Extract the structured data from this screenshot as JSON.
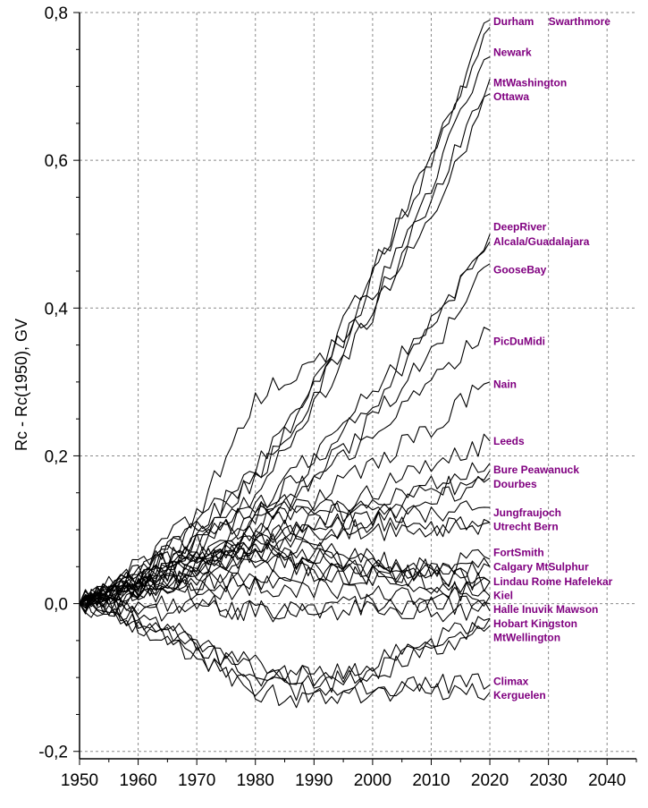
{
  "chart_data": {
    "type": "line",
    "title": "",
    "xlabel": "",
    "ylabel": "Rc - Rc(1950), GV",
    "xlim": [
      1950,
      2045
    ],
    "ylim": [
      -0.21,
      0.8
    ],
    "xticks": [
      1950,
      1960,
      1970,
      1980,
      1990,
      2000,
      2010,
      2020,
      2030,
      2040
    ],
    "yticks": [
      -0.2,
      0.0,
      0.2,
      0.4,
      0.6,
      0.8
    ],
    "ytick_labels": [
      "-0,2",
      "0,0",
      "0,2",
      "0,4",
      "0,6",
      "0,8"
    ],
    "grid": true,
    "label_color": "#800080",
    "line_color": "#000000",
    "series": [
      {
        "name": "Durham",
        "x": [
          1950,
          1960,
          1970,
          1980,
          1990,
          2000,
          2010,
          2020
        ],
        "values": [
          0,
          0.04,
          0.1,
          0.18,
          0.3,
          0.45,
          0.61,
          0.79
        ]
      },
      {
        "name": "Swarthmore",
        "x": [
          1950,
          1960,
          1970,
          1980,
          1990,
          2000,
          2010,
          2020
        ],
        "values": [
          0,
          0.04,
          0.11,
          0.17,
          0.29,
          0.44,
          0.6,
          0.78
        ]
      },
      {
        "name": "Newark",
        "x": [
          1950,
          1960,
          1970,
          1980,
          1990,
          2000,
          2010,
          2020
        ],
        "values": [
          0,
          0.04,
          0.1,
          0.17,
          0.28,
          0.42,
          0.57,
          0.74
        ]
      },
      {
        "name": "MtWashington",
        "x": [
          1950,
          1960,
          1970,
          1980,
          1990,
          2000,
          2010,
          2020
        ],
        "values": [
          0,
          0.05,
          0.12,
          0.28,
          0.32,
          0.4,
          0.55,
          0.71
        ]
      },
      {
        "name": "Ottawa",
        "x": [
          1950,
          1960,
          1970,
          1980,
          1990,
          2000,
          2010,
          2020
        ],
        "values": [
          0,
          0.03,
          0.09,
          0.15,
          0.27,
          0.39,
          0.53,
          0.69
        ]
      },
      {
        "name": "DeepRiver",
        "x": [
          1950,
          1960,
          1970,
          1980,
          1990,
          2000,
          2010,
          2020
        ],
        "values": [
          0,
          0.03,
          0.08,
          0.13,
          0.2,
          0.29,
          0.38,
          0.5
        ]
      },
      {
        "name": "Alcala/Guadalajara",
        "x": [
          1950,
          1960,
          1970,
          1980,
          1990,
          2000,
          2010,
          2020
        ],
        "values": [
          0,
          0.03,
          0.07,
          0.12,
          0.19,
          0.27,
          0.37,
          0.49
        ]
      },
      {
        "name": "GooseBay",
        "x": [
          1950,
          1960,
          1970,
          1980,
          1990,
          2000,
          2010,
          2020
        ],
        "values": [
          0,
          0.03,
          0.06,
          0.11,
          0.17,
          0.25,
          0.34,
          0.46
        ]
      },
      {
        "name": "PicDuMidi",
        "x": [
          1950,
          1960,
          1970,
          1980,
          1990,
          2000,
          2010,
          2020
        ],
        "values": [
          0,
          0.02,
          0.06,
          0.1,
          0.16,
          0.23,
          0.3,
          0.37
        ]
      },
      {
        "name": "Nain",
        "x": [
          1950,
          1960,
          1970,
          1980,
          1990,
          2000,
          2010,
          2020
        ],
        "values": [
          0,
          0.02,
          0.05,
          0.09,
          0.14,
          0.19,
          0.24,
          0.3
        ]
      },
      {
        "name": "Leeds",
        "x": [
          1950,
          1960,
          1970,
          1980,
          1990,
          2000,
          2010,
          2020
        ],
        "values": [
          0,
          0.02,
          0.05,
          0.08,
          0.12,
          0.15,
          0.19,
          0.22
        ]
      },
      {
        "name": "Bure",
        "x": [
          1950,
          1960,
          1970,
          1980,
          1990,
          2000,
          2010,
          2020
        ],
        "values": [
          0,
          0.02,
          0.05,
          0.08,
          0.11,
          0.14,
          0.16,
          0.19
        ]
      },
      {
        "name": "Peawanuck",
        "x": [
          1950,
          1960,
          1970,
          1980,
          1990,
          2000,
          2010,
          2020
        ],
        "values": [
          0,
          0.01,
          0.03,
          0.06,
          0.09,
          0.12,
          0.15,
          0.18
        ]
      },
      {
        "name": "Dourbes",
        "x": [
          1950,
          1960,
          1970,
          1980,
          1990,
          2000,
          2010,
          2020
        ],
        "values": [
          0,
          0.02,
          0.05,
          0.08,
          0.1,
          0.12,
          0.14,
          0.17
        ]
      },
      {
        "name": "Jungfraujoch",
        "x": [
          1950,
          1960,
          1970,
          1980,
          1990,
          2000,
          2010,
          2020
        ],
        "values": [
          0,
          0.04,
          0.08,
          0.12,
          0.13,
          0.12,
          0.12,
          0.13
        ]
      },
      {
        "name": "Utrecht",
        "x": [
          1950,
          1960,
          1970,
          1980,
          1990,
          2000,
          2010,
          2020
        ],
        "values": [
          0,
          0.03,
          0.06,
          0.09,
          0.1,
          0.1,
          0.1,
          0.11
        ]
      },
      {
        "name": "Bern",
        "x": [
          1950,
          1960,
          1970,
          1980,
          1990,
          2000,
          2010,
          2020
        ],
        "values": [
          0,
          0.04,
          0.08,
          0.13,
          0.12,
          0.11,
          0.1,
          0.11
        ]
      },
      {
        "name": "FortSmith",
        "x": [
          1950,
          1960,
          1970,
          1980,
          1990,
          2000,
          2010,
          2020
        ],
        "values": [
          0,
          0.01,
          0.02,
          0.03,
          0.04,
          0.04,
          0.05,
          0.06
        ]
      },
      {
        "name": "Calgary",
        "x": [
          1950,
          1960,
          1970,
          1980,
          1990,
          2000,
          2010,
          2020
        ],
        "values": [
          0,
          0.02,
          0.03,
          0.04,
          0.04,
          0.04,
          0.04,
          0.05
        ]
      },
      {
        "name": "MtSulphur",
        "x": [
          1950,
          1960,
          1970,
          1980,
          1990,
          2000,
          2010,
          2020
        ],
        "values": [
          0,
          0.02,
          0.04,
          0.06,
          0.06,
          0.05,
          0.05,
          0.05
        ]
      },
      {
        "name": "Lindau",
        "x": [
          1950,
          1960,
          1970,
          1980,
          1990,
          2000,
          2010,
          2020
        ],
        "values": [
          0,
          0.03,
          0.07,
          0.09,
          0.08,
          0.06,
          0.04,
          0.03
        ]
      },
      {
        "name": "Rome",
        "x": [
          1950,
          1960,
          1970,
          1980,
          1990,
          2000,
          2010,
          2020
        ],
        "values": [
          0,
          0.03,
          0.05,
          0.07,
          0.06,
          0.05,
          0.03,
          0.03
        ]
      },
      {
        "name": "Hafelekar",
        "x": [
          1950,
          1960,
          1970,
          1980,
          1990,
          2000,
          2010,
          2020
        ],
        "values": [
          0,
          0.03,
          0.06,
          0.08,
          0.07,
          0.05,
          0.04,
          0.03
        ]
      },
      {
        "name": "Kiel",
        "x": [
          1950,
          1960,
          1970,
          1980,
          1990,
          2000,
          2010,
          2020
        ],
        "values": [
          0,
          0.02,
          0.04,
          0.06,
          0.05,
          0.03,
          0.02,
          0.01
        ]
      },
      {
        "name": "Halle",
        "x": [
          1950,
          1960,
          1970,
          1980,
          1990,
          2000,
          2010,
          2020
        ],
        "values": [
          0,
          0.02,
          0.02,
          0.02,
          0.02,
          0.02,
          0.01,
          0.01
        ]
      },
      {
        "name": "Inuvik",
        "x": [
          1950,
          1960,
          1970,
          1980,
          1990,
          2000,
          2010,
          2020
        ],
        "values": [
          0,
          -0.01,
          -0.01,
          -0.01,
          -0.01,
          -0.01,
          -0.01,
          -0.01
        ]
      },
      {
        "name": "Mawson",
        "x": [
          1950,
          1960,
          1970,
          1980,
          1990,
          2000,
          2010,
          2020
        ],
        "values": [
          0,
          0,
          0,
          -0.01,
          -0.01,
          0,
          0,
          0
        ]
      },
      {
        "name": "Hobart",
        "x": [
          1950,
          1960,
          1970,
          1980,
          1990,
          2000,
          2010,
          2020
        ],
        "values": [
          0,
          -0.02,
          -0.05,
          -0.08,
          -0.1,
          -0.09,
          -0.06,
          -0.02
        ]
      },
      {
        "name": "Kingston",
        "x": [
          1950,
          1960,
          1970,
          1980,
          1990,
          2000,
          2010,
          2020
        ],
        "values": [
          0,
          -0.02,
          -0.06,
          -0.09,
          -0.1,
          -0.08,
          -0.05,
          -0.02
        ]
      },
      {
        "name": "MtWellington",
        "x": [
          1950,
          1960,
          1970,
          1980,
          1990,
          2000,
          2010,
          2020
        ],
        "values": [
          0,
          -0.02,
          -0.06,
          -0.1,
          -0.11,
          -0.1,
          -0.06,
          -0.03
        ]
      },
      {
        "name": "Climax",
        "x": [
          1950,
          1960,
          1970,
          1980,
          1990,
          2000,
          2010,
          2020
        ],
        "values": [
          0,
          -0.03,
          -0.07,
          -0.11,
          -0.12,
          -0.11,
          -0.11,
          -0.11
        ]
      },
      {
        "name": "Kerguelen",
        "x": [
          1950,
          1960,
          1970,
          1980,
          1990,
          2000,
          2010,
          2020
        ],
        "values": [
          0,
          -0.03,
          -0.07,
          -0.12,
          -0.13,
          -0.12,
          -0.12,
          -0.12
        ]
      }
    ],
    "station_labels": [
      {
        "text": "Durham",
        "x": 2020.6,
        "y": 0.788
      },
      {
        "text": "Swarthmore",
        "x": 2030.0,
        "y": 0.788
      },
      {
        "text": "Newark",
        "x": 2020.6,
        "y": 0.746
      },
      {
        "text": "MtWashington",
        "x": 2020.6,
        "y": 0.705
      },
      {
        "text": "Ottawa",
        "x": 2020.6,
        "y": 0.686
      },
      {
        "text": "DeepRiver",
        "x": 2020.6,
        "y": 0.51
      },
      {
        "text": "Alcala/Guadalajara",
        "x": 2020.6,
        "y": 0.49
      },
      {
        "text": "GooseBay",
        "x": 2020.6,
        "y": 0.452
      },
      {
        "text": "PicDuMidi",
        "x": 2020.6,
        "y": 0.355
      },
      {
        "text": "Nain",
        "x": 2020.6,
        "y": 0.297
      },
      {
        "text": "Leeds",
        "x": 2020.6,
        "y": 0.22
      },
      {
        "text": "Bure Peawanuck",
        "x": 2020.6,
        "y": 0.181
      },
      {
        "text": "Dourbes",
        "x": 2020.6,
        "y": 0.162
      },
      {
        "text": "Jungfraujoch",
        "x": 2020.6,
        "y": 0.123
      },
      {
        "text": "Utrecht  Bern",
        "x": 2020.6,
        "y": 0.104
      },
      {
        "text": "FortSmith",
        "x": 2020.6,
        "y": 0.069
      },
      {
        "text": "Calgary  MtSulphur",
        "x": 2020.6,
        "y": 0.05
      },
      {
        "text": "Lindau Rome Hafelekar",
        "x": 2020.6,
        "y": 0.03
      },
      {
        "text": "Kiel",
        "x": 2020.6,
        "y": 0.011
      },
      {
        "text": "Halle Inuvik Mawson",
        "x": 2020.6,
        "y": -0.008
      },
      {
        "text": "Hobart Kingston",
        "x": 2020.6,
        "y": -0.027
      },
      {
        "text": "MtWellington",
        "x": 2020.6,
        "y": -0.046
      },
      {
        "text": "Climax",
        "x": 2020.6,
        "y": -0.105
      },
      {
        "text": "Kerguelen",
        "x": 2020.6,
        "y": -0.124
      }
    ]
  }
}
